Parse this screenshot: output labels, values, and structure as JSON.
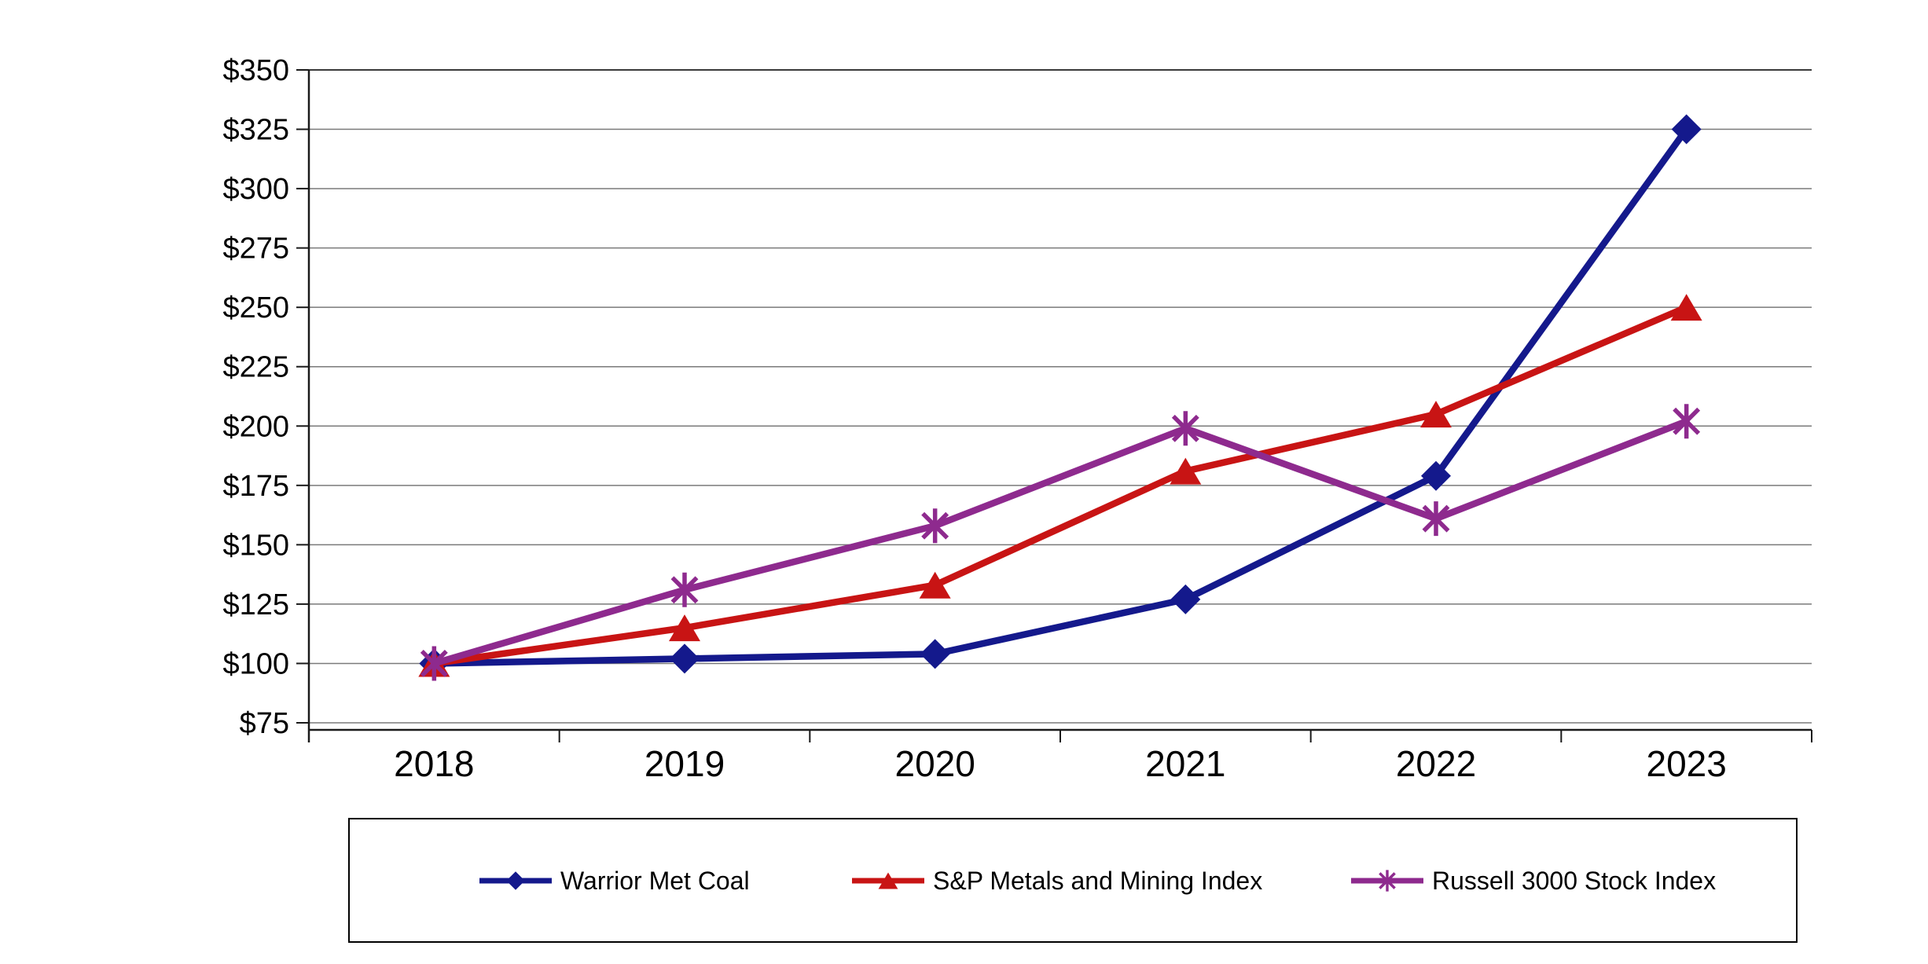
{
  "page": {
    "background_color": "#FFFFFF",
    "title": ""
  },
  "chart_data": {
    "type": "line",
    "title": "",
    "xlabel": "",
    "ylabel": "",
    "x": [
      "2018",
      "2019",
      "2020",
      "2021",
      "2022",
      "2023"
    ],
    "y_tick_labels": [
      "$75",
      "$100",
      "$125",
      "$150",
      "$175",
      "$200",
      "$225",
      "$250",
      "$275",
      "$300",
      "$325",
      "$350"
    ],
    "ylim": [
      75,
      350
    ],
    "ytick_step": 25,
    "grid": true,
    "legend_position": "bottom",
    "series": [
      {
        "name": "Warrior Met Coal",
        "marker": "diamond",
        "color": "#14198C",
        "values": [
          100,
          102,
          104,
          127,
          179,
          325
        ]
      },
      {
        "name": "S&P Metals and Mining Index",
        "marker": "triangle",
        "color": "#C81414",
        "values": [
          100,
          115,
          133,
          181,
          205,
          250
        ]
      },
      {
        "name": "Russell 3000 Stock Index",
        "marker": "asterisk",
        "color": "#8E2A8E",
        "values": [
          100,
          131,
          158,
          199,
          161,
          202
        ]
      }
    ],
    "colors": {
      "gridline": "#7A7A7A",
      "top_gridline": "#3A3A3A",
      "axis": "#1A1A1A",
      "text": "#000000",
      "legend_border": "#000000"
    }
  }
}
